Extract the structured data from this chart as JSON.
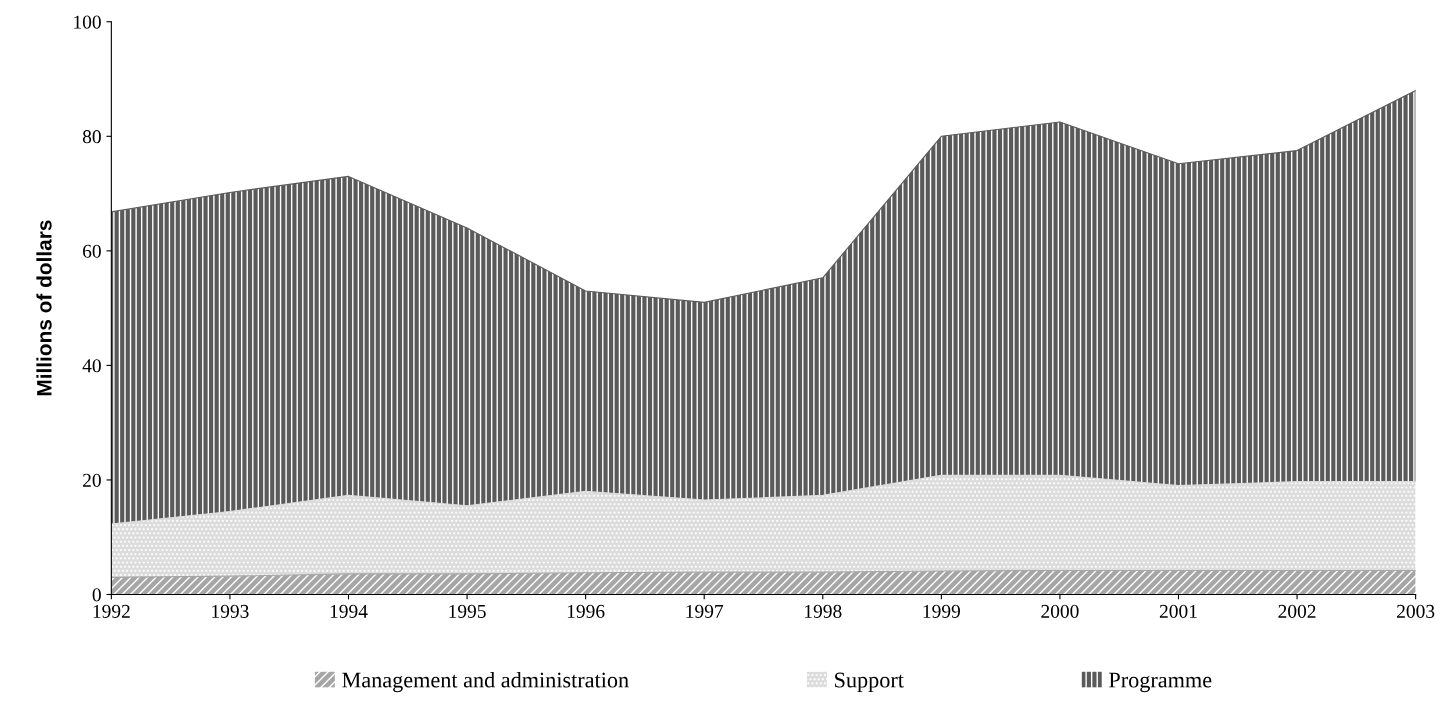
{
  "chart_data": {
    "type": "area",
    "stacked": true,
    "ylabel": "Millions of dollars",
    "x": [
      1992,
      1993,
      1994,
      1995,
      1996,
      1997,
      1998,
      1999,
      2000,
      2001,
      2002,
      2003
    ],
    "xlim": [
      1992,
      2003
    ],
    "xticks": [
      1992,
      1993,
      1994,
      1995,
      1996,
      1997,
      1998,
      1999,
      2000,
      2001,
      2002,
      2003
    ],
    "ylim": [
      0,
      100
    ],
    "yticks": [
      0,
      20,
      40,
      60,
      80,
      100
    ],
    "grid": false,
    "legend": "bottom",
    "series": [
      {
        "name": "Management and administration",
        "color": "#a6a6a6",
        "values": [
          3.0,
          3.2,
          3.6,
          3.6,
          3.8,
          3.9,
          3.9,
          4.1,
          4.2,
          4.2,
          4.2,
          4.2
        ]
      },
      {
        "name": "Support",
        "color": "#dcdcdc",
        "values": [
          9.3,
          11.3,
          13.7,
          11.9,
          14.2,
          12.6,
          13.4,
          16.7,
          16.6,
          14.8,
          15.5,
          15.5
        ]
      },
      {
        "name": "Programme",
        "color": "#5a5a5a",
        "values": [
          54.5,
          55.7,
          55.7,
          48.5,
          35.0,
          34.5,
          38.0,
          59.2,
          61.7,
          56.2,
          57.8,
          68.3
        ]
      }
    ]
  }
}
